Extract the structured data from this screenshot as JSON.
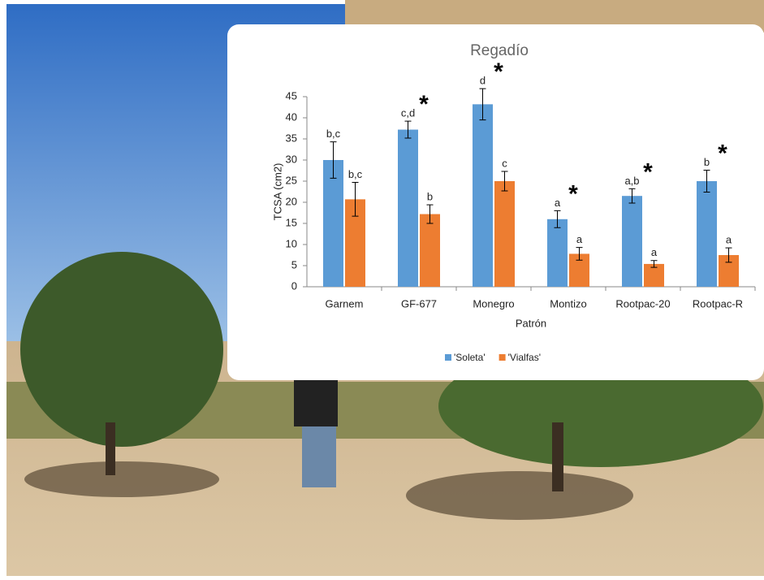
{
  "chart_data": {
    "type": "bar",
    "title": "Regadío",
    "x_label": "Patrón",
    "y_label": "TCSA (cm2)",
    "categories": [
      "Garnem",
      "GF-677",
      "Monegro",
      "Montizo",
      "Rootpac-20",
      "Rootpac-R"
    ],
    "series": [
      {
        "name": "'Soleta'",
        "color": "#5b9bd5",
        "values": [
          30,
          37.2,
          43.2,
          16,
          21.5,
          25
        ],
        "errors": [
          4.3,
          2,
          3.7,
          2,
          1.7,
          2.6
        ],
        "letters": [
          "b,c",
          "c,d",
          "d",
          "a",
          "a,b",
          "b"
        ]
      },
      {
        "name": "'Vialfas'",
        "color": "#ed7d31",
        "values": [
          20.7,
          17.2,
          25,
          7.8,
          5.4,
          7.5
        ],
        "errors": [
          4,
          2.2,
          2.3,
          1.5,
          0.8,
          1.7
        ],
        "letters": [
          "b,c",
          "b",
          "c",
          "a",
          "a",
          "a"
        ]
      }
    ],
    "significance": [
      null,
      "*",
      "*",
      "*",
      "*",
      "*"
    ],
    "ylim": [
      0,
      45
    ],
    "yticks": [
      0,
      5,
      10,
      15,
      20,
      25,
      30,
      35,
      40,
      45
    ],
    "grid": false,
    "legend": "bottom"
  }
}
